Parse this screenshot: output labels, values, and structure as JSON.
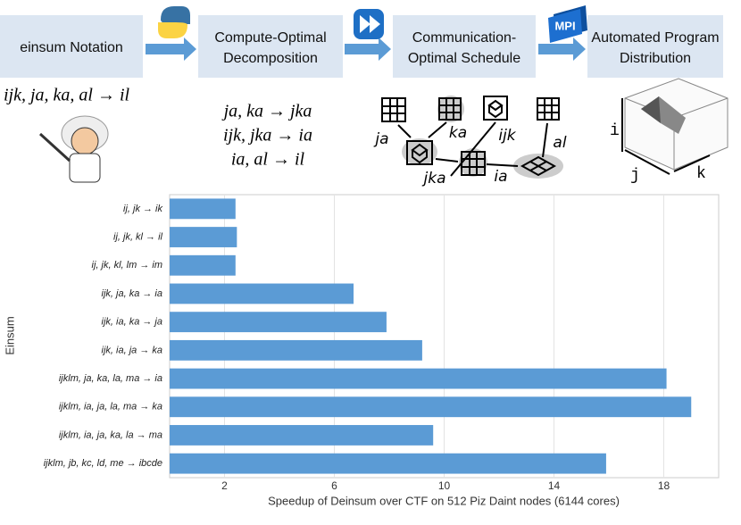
{
  "pipeline": {
    "steps": [
      [
        "einsum Notation"
      ],
      [
        "Compute-Optimal",
        "Decomposition"
      ],
      [
        "Communication-",
        "Optimal Schedule"
      ],
      [
        "Automated Program",
        "Distribution"
      ]
    ],
    "mpi_icon": "MPI"
  },
  "input_expression": "ijk, ja, ka, al → il",
  "decomposition": [
    "ja, ka → jka",
    "ijk, jka → ia",
    "ia, al → il"
  ],
  "schedule_graph": {
    "nodes": [
      "ja",
      "ka",
      "ijk",
      "al",
      "jka",
      "ia"
    ]
  },
  "distribution_axes": [
    "i",
    "j",
    "k"
  ],
  "chart_data": {
    "type": "barh",
    "x_label": "Speedup of Deinsum over CTF on 512 Piz Daint nodes (6144 cores)",
    "y_label": "Einsum",
    "categories": [
      "ij, jk → ik",
      "ij, jk, kl → il",
      "ij, jk, kl, lm → im",
      "ijk, ja, ka → ia",
      "ijk, ia, ka → ja",
      "ijk, ia, ja → ka",
      "ijklm, ja, ka, la, ma → ia",
      "ijklm, ia, ja, la, ma → ka",
      "ijklm, ia, ja, ka, la → ma",
      "ijklm, jb, kc, ld, me → ibcde"
    ],
    "values": [
      2.4,
      2.45,
      2.4,
      6.7,
      7.9,
      9.2,
      18.1,
      19.0,
      9.6,
      15.9
    ],
    "color": "#5b9bd5",
    "xlim": [
      0,
      20
    ],
    "xticks": [
      2,
      6,
      10,
      14,
      18
    ],
    "grid": true
  }
}
